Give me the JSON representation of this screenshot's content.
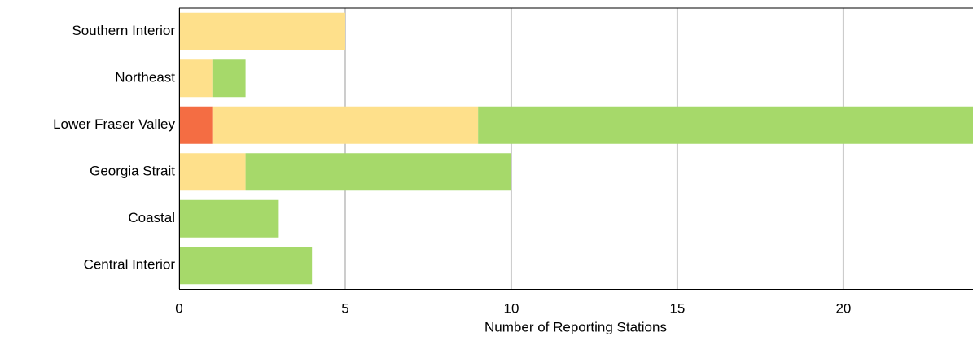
{
  "chart_data": {
    "type": "stacked-barh",
    "x_label": "Number of Reporting Stations",
    "categories": [
      "Southern Interior",
      "Northeast",
      "Lower Fraser Valley",
      "Georgia Strait",
      "Coastal",
      "Central Interior"
    ],
    "series": [
      {
        "color": "#f46d43",
        "values": [
          0,
          0,
          1,
          0,
          0,
          0
        ]
      },
      {
        "color": "#fee08b",
        "values": [
          5,
          1,
          8,
          2,
          0,
          0
        ]
      },
      {
        "color": "#a6d96a",
        "values": [
          0,
          1,
          15,
          8,
          3,
          4
        ]
      }
    ],
    "xlim": [
      0,
      23.9
    ],
    "xticks": [
      0,
      5,
      10,
      15,
      20
    ],
    "grid": true
  }
}
